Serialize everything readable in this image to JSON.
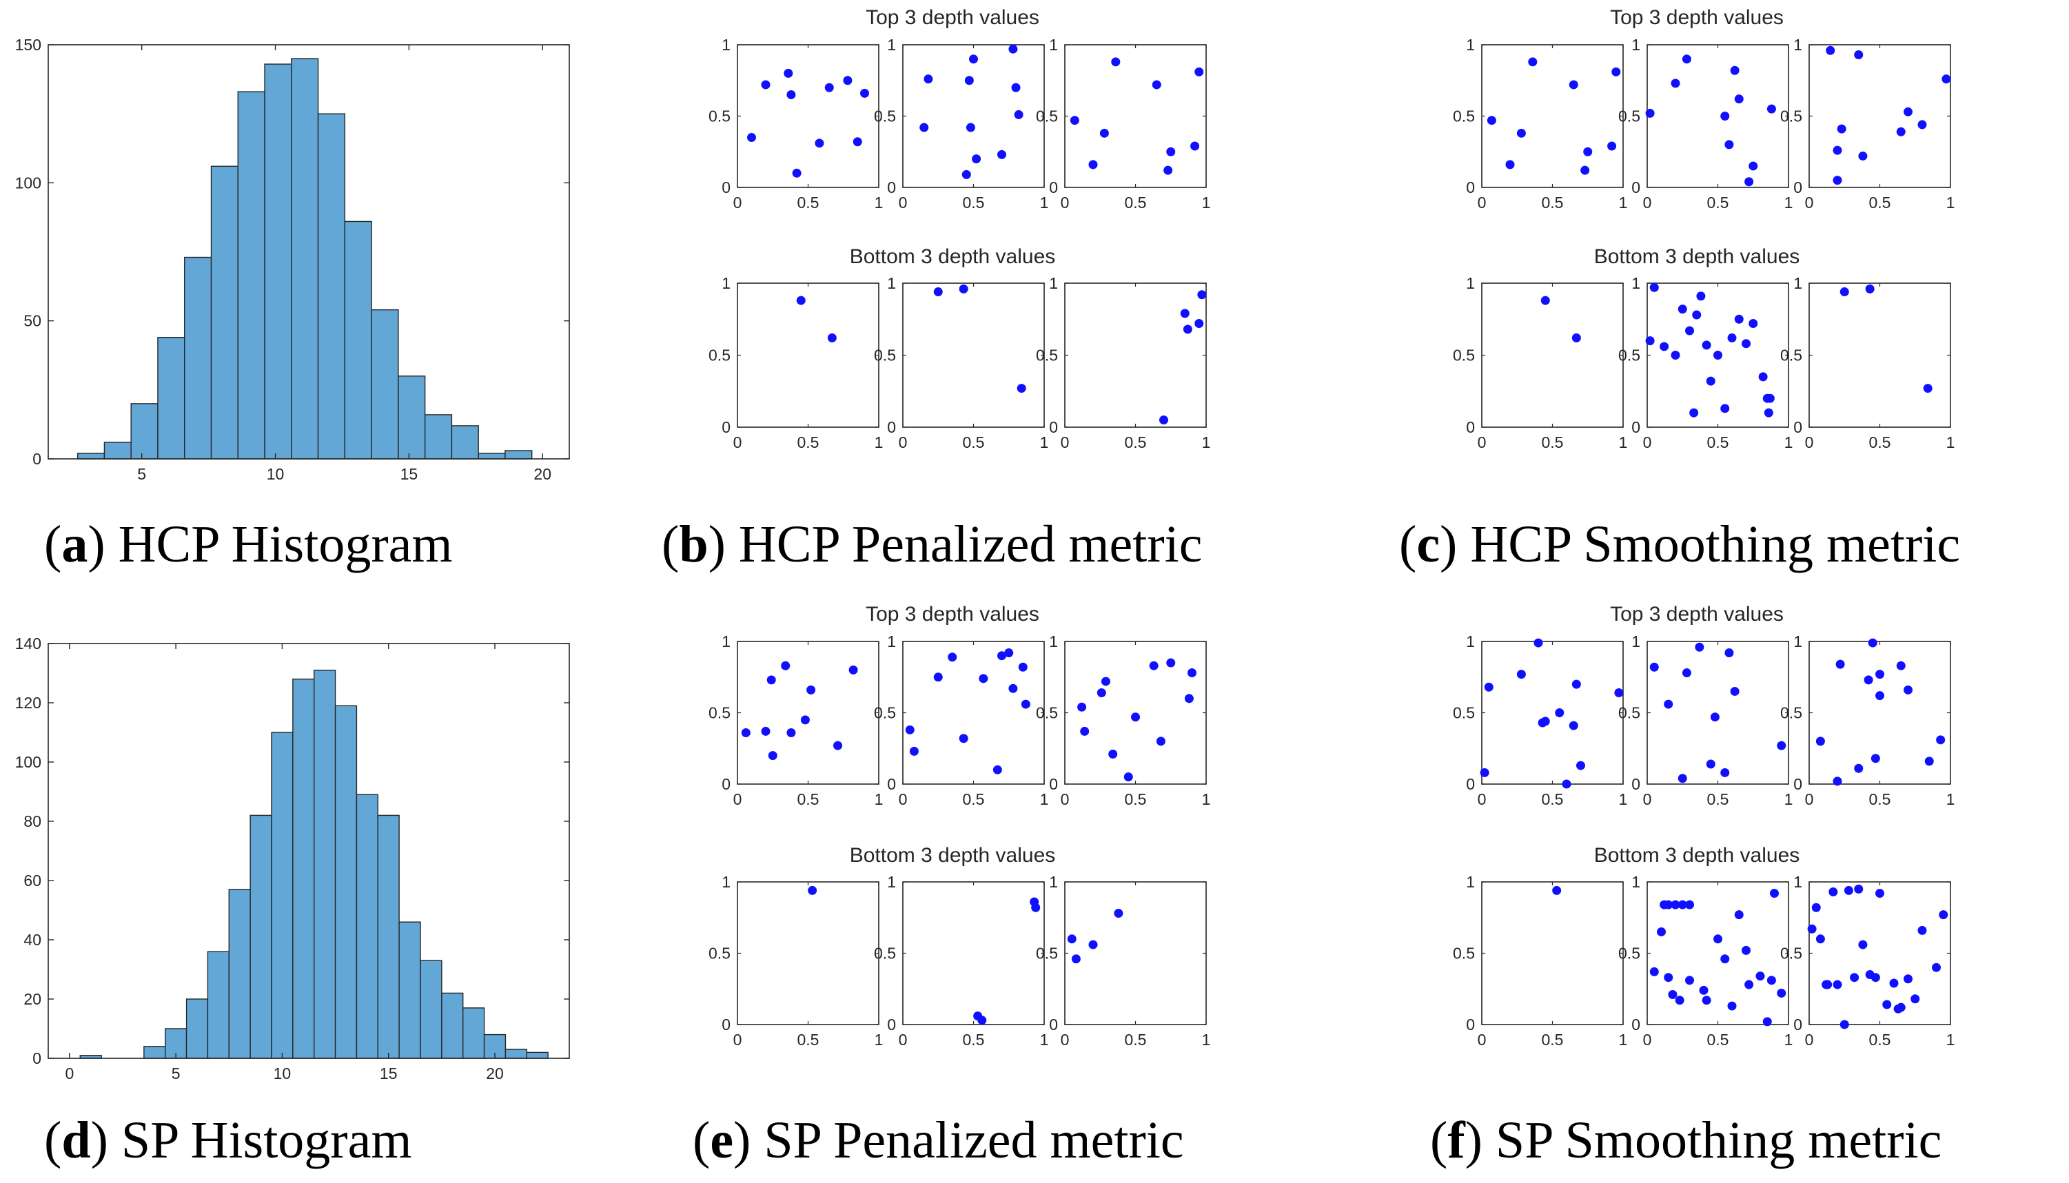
{
  "colors": {
    "bar_fill": "#62a7d6",
    "bar_edge": "#262626",
    "point": "#1010ff",
    "axis": "#262626"
  },
  "captions": [
    {
      "letter": "a",
      "text": " HCP Histogram"
    },
    {
      "letter": "b",
      "text": " HCP Penalized metric"
    },
    {
      "letter": "c",
      "text": " HCP Smoothing metric"
    },
    {
      "letter": "d",
      "text": " SP Histogram"
    },
    {
      "letter": "e",
      "text": " SP Penalized metric"
    },
    {
      "letter": "f",
      "text": " SP Smoothing metric"
    }
  ],
  "chart_data": [
    {
      "id": "a",
      "type": "bar",
      "caption": "(a) HCP Histogram",
      "xlim": [
        1.5,
        21
      ],
      "ylim": [
        0,
        150
      ],
      "xticks": [
        5,
        10,
        15,
        20
      ],
      "yticks": [
        0,
        50,
        100,
        150
      ],
      "bin_edges": [
        2.6,
        3.6,
        4.6,
        5.6,
        6.6,
        7.6,
        8.6,
        9.6,
        10.6,
        11.6,
        12.6,
        13.6,
        14.6,
        15.6,
        16.6,
        17.6,
        18.6,
        19.6
      ],
      "values": [
        2,
        6,
        20,
        44,
        73,
        106,
        133,
        143,
        145,
        125,
        86,
        54,
        30,
        16,
        12,
        2,
        3
      ]
    },
    {
      "id": "b",
      "type": "scatter",
      "caption": "(b) HCP Penalized metric",
      "groups": [
        {
          "title": "Top 3 depth values",
          "panels": [
            {
              "x": [
                0.1,
                0.2,
                0.36,
                0.38,
                0.42,
                0.58,
                0.65,
                0.78,
                0.85,
                0.9
              ],
              "y": [
                0.35,
                0.72,
                0.8,
                0.65,
                0.1,
                0.31,
                0.7,
                0.75,
                0.32,
                0.66
              ]
            },
            {
              "x": [
                0.15,
                0.18,
                0.45,
                0.47,
                0.48,
                0.5,
                0.52,
                0.7,
                0.78,
                0.8,
                0.82
              ],
              "y": [
                0.42,
                0.76,
                0.09,
                0.75,
                0.42,
                0.9,
                0.2,
                0.23,
                0.97,
                0.7,
                0.51
              ]
            },
            {
              "x": [
                0.07,
                0.2,
                0.28,
                0.36,
                0.65,
                0.73,
                0.75,
                0.92,
                0.95
              ],
              "y": [
                0.47,
                0.16,
                0.38,
                0.88,
                0.72,
                0.12,
                0.25,
                0.29,
                0.81
              ]
            }
          ]
        },
        {
          "title": "Bottom 3 depth values",
          "panels": [
            {
              "x": [
                0.45,
                0.67
              ],
              "y": [
                0.88,
                0.62
              ]
            },
            {
              "x": [
                0.25,
                0.43,
                0.84
              ],
              "y": [
                0.94,
                0.96,
                0.27
              ]
            },
            {
              "x": [
                0.7,
                0.85,
                0.87,
                0.95,
                0.97
              ],
              "y": [
                0.05,
                0.79,
                0.68,
                0.72,
                0.92
              ]
            }
          ]
        }
      ]
    },
    {
      "id": "c",
      "type": "scatter",
      "caption": "(c) HCP Smoothing metric",
      "groups": [
        {
          "title": "Top 3 depth values",
          "panels": [
            {
              "x": [
                0.07,
                0.2,
                0.28,
                0.36,
                0.65,
                0.73,
                0.75,
                0.92,
                0.95
              ],
              "y": [
                0.47,
                0.16,
                0.38,
                0.88,
                0.72,
                0.12,
                0.25,
                0.29,
                0.81
              ]
            },
            {
              "x": [
                0.02,
                0.2,
                0.28,
                0.55,
                0.58,
                0.62,
                0.65,
                0.72,
                0.75,
                0.88
              ],
              "y": [
                0.52,
                0.73,
                0.9,
                0.5,
                0.3,
                0.82,
                0.62,
                0.04,
                0.15,
                0.55
              ]
            },
            {
              "x": [
                0.15,
                0.2,
                0.2,
                0.23,
                0.35,
                0.38,
                0.65,
                0.7,
                0.8,
                0.97
              ],
              "y": [
                0.96,
                0.05,
                0.26,
                0.41,
                0.93,
                0.22,
                0.39,
                0.53,
                0.44,
                0.76
              ]
            }
          ]
        },
        {
          "title": "Bottom 3 depth values",
          "panels": [
            {
              "x": [
                0.45,
                0.67
              ],
              "y": [
                0.88,
                0.62
              ]
            },
            {
              "x": [
                0.02,
                0.05,
                0.12,
                0.2,
                0.25,
                0.3,
                0.33,
                0.35,
                0.38,
                0.42,
                0.45,
                0.5,
                0.55,
                0.6,
                0.65,
                0.7,
                0.75,
                0.82,
                0.85,
                0.86,
                0.87
              ],
              "y": [
                0.6,
                0.97,
                0.56,
                0.5,
                0.82,
                0.67,
                0.1,
                0.78,
                0.91,
                0.57,
                0.32,
                0.5,
                0.13,
                0.62,
                0.75,
                0.58,
                0.72,
                0.35,
                0.2,
                0.1,
                0.2
              ]
            },
            {
              "x": [
                0.25,
                0.43,
                0.84
              ],
              "y": [
                0.94,
                0.96,
                0.27
              ]
            }
          ]
        }
      ]
    },
    {
      "id": "d",
      "type": "bar",
      "caption": "(d) SP Histogram",
      "xlim": [
        -1,
        23.5
      ],
      "ylim": [
        0,
        140
      ],
      "xticks": [
        0,
        5,
        10,
        15,
        20
      ],
      "yticks": [
        0,
        20,
        40,
        60,
        80,
        100,
        120,
        140
      ],
      "bin_edges": [
        0.5,
        1.5,
        2.5,
        3.5,
        4.5,
        5.5,
        6.5,
        7.5,
        8.5,
        9.5,
        10.5,
        11.5,
        12.5,
        13.5,
        14.5,
        15.5,
        16.5,
        17.5,
        18.5,
        19.5,
        20.5,
        21.5,
        22.5
      ],
      "values": [
        1,
        0,
        0,
        4,
        10,
        20,
        36,
        57,
        82,
        110,
        128,
        131,
        119,
        89,
        82,
        46,
        33,
        22,
        17,
        8,
        3,
        2
      ]
    },
    {
      "id": "e",
      "type": "scatter",
      "caption": "(e) SP Penalized metric",
      "groups": [
        {
          "title": "Top 3 depth values",
          "panels": [
            {
              "x": [
                0.06,
                0.2,
                0.24,
                0.25,
                0.34,
                0.38,
                0.48,
                0.52,
                0.71,
                0.82
              ],
              "y": [
                0.36,
                0.37,
                0.73,
                0.2,
                0.83,
                0.36,
                0.45,
                0.66,
                0.27,
                0.8
              ]
            },
            {
              "x": [
                0.05,
                0.08,
                0.25,
                0.35,
                0.43,
                0.57,
                0.67,
                0.7,
                0.75,
                0.78,
                0.85,
                0.87
              ],
              "y": [
                0.38,
                0.23,
                0.75,
                0.89,
                0.32,
                0.74,
                0.1,
                0.9,
                0.92,
                0.67,
                0.82,
                0.56
              ]
            },
            {
              "x": [
                0.12,
                0.14,
                0.26,
                0.29,
                0.34,
                0.45,
                0.5,
                0.63,
                0.68,
                0.75,
                0.88,
                0.9
              ],
              "y": [
                0.54,
                0.37,
                0.64,
                0.72,
                0.21,
                0.05,
                0.47,
                0.83,
                0.3,
                0.85,
                0.6,
                0.78
              ]
            }
          ]
        },
        {
          "title": "Bottom 3 depth values",
          "panels": [
            {
              "x": [
                0.53
              ],
              "y": [
                0.94
              ]
            },
            {
              "x": [
                0.53,
                0.56,
                0.93,
                0.94
              ],
              "y": [
                0.06,
                0.03,
                0.86,
                0.82
              ]
            },
            {
              "x": [
                0.05,
                0.08,
                0.2,
                0.38
              ],
              "y": [
                0.6,
                0.46,
                0.56,
                0.78
              ]
            }
          ]
        }
      ]
    },
    {
      "id": "f",
      "type": "scatter",
      "caption": "(f) SP Smoothing metric",
      "groups": [
        {
          "title": "Top 3 depth values",
          "panels": [
            {
              "x": [
                0.02,
                0.05,
                0.28,
                0.4,
                0.43,
                0.45,
                0.55,
                0.6,
                0.65,
                0.67,
                0.7,
                0.97
              ],
              "y": [
                0.08,
                0.68,
                0.77,
                0.99,
                0.43,
                0.44,
                0.5,
                0.0,
                0.41,
                0.7,
                0.13,
                0.64
              ]
            },
            {
              "x": [
                0.05,
                0.15,
                0.25,
                0.28,
                0.37,
                0.45,
                0.48,
                0.55,
                0.58,
                0.62,
                0.95
              ],
              "y": [
                0.82,
                0.56,
                0.04,
                0.78,
                0.96,
                0.14,
                0.47,
                0.08,
                0.92,
                0.65,
                0.27
              ]
            },
            {
              "x": [
                0.08,
                0.2,
                0.22,
                0.35,
                0.42,
                0.45,
                0.47,
                0.5,
                0.5,
                0.65,
                0.7,
                0.85,
                0.93
              ],
              "y": [
                0.3,
                0.02,
                0.84,
                0.11,
                0.73,
                0.99,
                0.18,
                0.62,
                0.77,
                0.83,
                0.66,
                0.16,
                0.31
              ]
            }
          ]
        },
        {
          "title": "Bottom 3 depth values",
          "panels": [
            {
              "x": [
                0.53
              ],
              "y": [
                0.94
              ]
            },
            {
              "x": [
                0.05,
                0.1,
                0.12,
                0.15,
                0.15,
                0.18,
                0.2,
                0.23,
                0.25,
                0.3,
                0.3,
                0.4,
                0.42,
                0.5,
                0.55,
                0.6,
                0.65,
                0.7,
                0.72,
                0.8,
                0.85,
                0.88,
                0.9,
                0.95
              ],
              "y": [
                0.37,
                0.65,
                0.84,
                0.33,
                0.84,
                0.21,
                0.84,
                0.17,
                0.84,
                0.84,
                0.31,
                0.24,
                0.17,
                0.6,
                0.46,
                0.13,
                0.77,
                0.52,
                0.28,
                0.34,
                0.02,
                0.31,
                0.92,
                0.22
              ]
            },
            {
              "x": [
                0.02,
                0.05,
                0.08,
                0.12,
                0.13,
                0.17,
                0.2,
                0.25,
                0.28,
                0.32,
                0.35,
                0.38,
                0.43,
                0.47,
                0.5,
                0.55,
                0.6,
                0.63,
                0.65,
                0.7,
                0.75,
                0.8,
                0.9,
                0.95
              ],
              "y": [
                0.67,
                0.82,
                0.6,
                0.28,
                0.28,
                0.93,
                0.28,
                0.0,
                0.94,
                0.33,
                0.95,
                0.56,
                0.35,
                0.33,
                0.92,
                0.14,
                0.29,
                0.11,
                0.12,
                0.32,
                0.18,
                0.66,
                0.4,
                0.77
              ]
            }
          ]
        }
      ]
    }
  ]
}
